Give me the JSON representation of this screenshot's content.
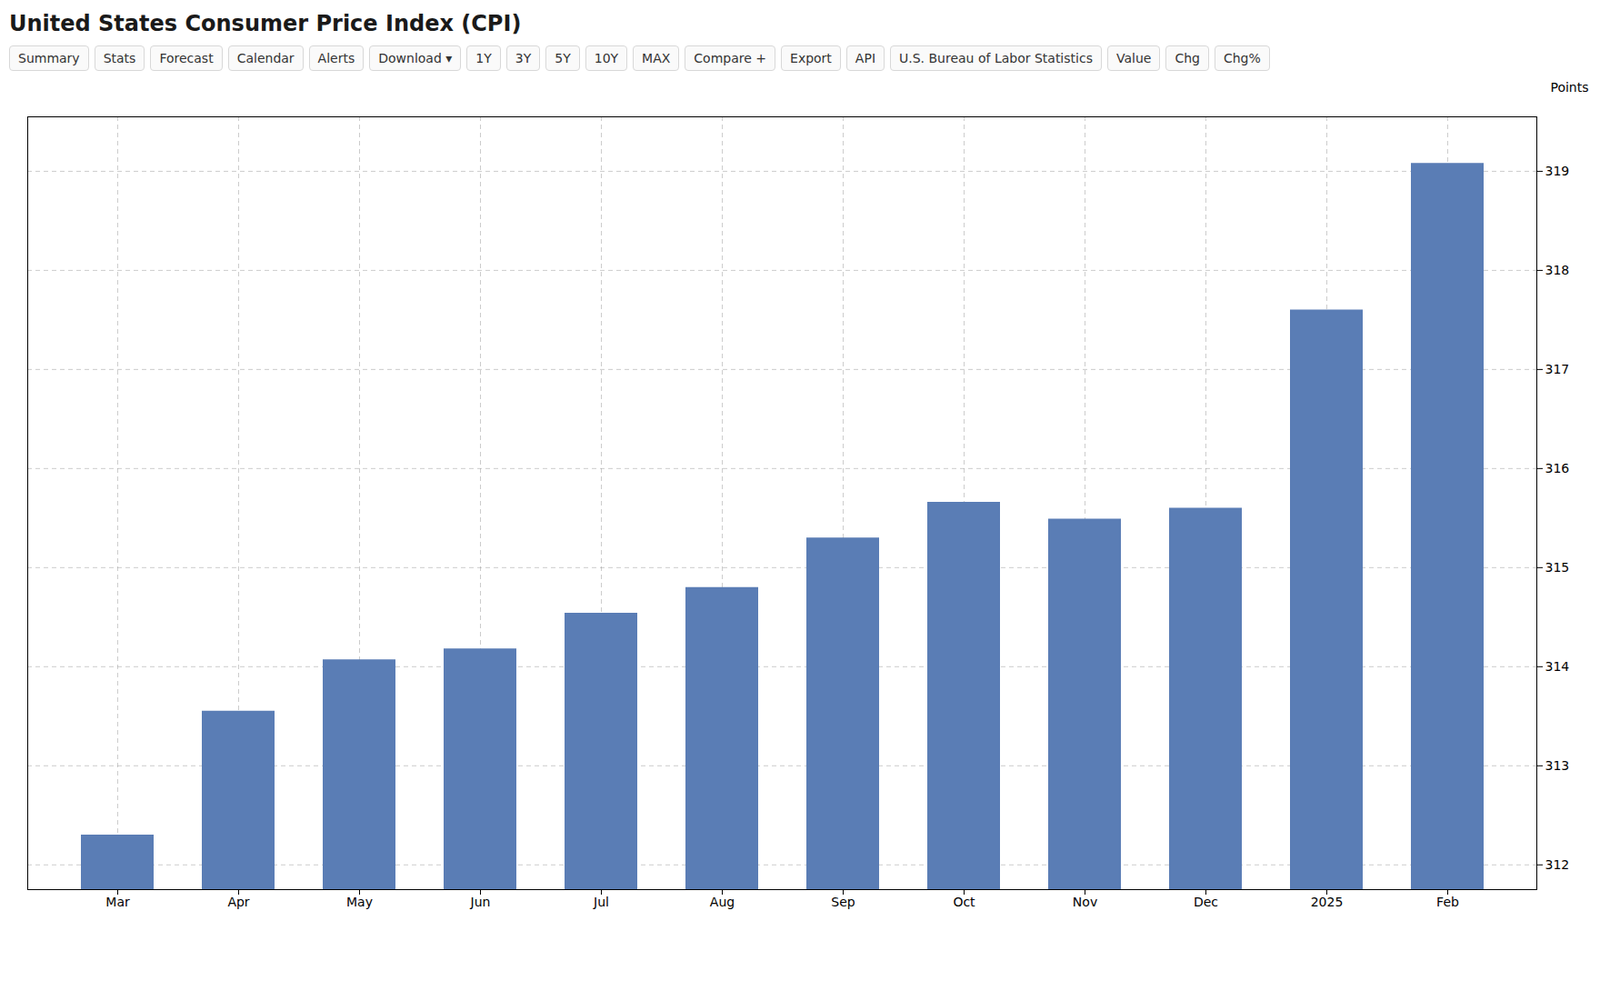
{
  "chart_data": {
    "type": "bar",
    "title": "United States Consumer Price Index (CPI)",
    "categories": [
      "Mar",
      "Apr",
      "May",
      "Jun",
      "Jul",
      "Aug",
      "Sep",
      "Oct",
      "Nov",
      "Dec",
      "2025",
      "Feb"
    ],
    "values": [
      312.3,
      313.55,
      314.07,
      314.18,
      314.54,
      314.8,
      315.3,
      315.66,
      315.49,
      315.6,
      317.6,
      319.08
    ],
    "color": "#5a7db5",
    "ylim": [
      311.75,
      319.55
    ],
    "yticks": [
      312,
      313,
      314,
      315,
      316,
      317,
      318,
      319
    ],
    "ylabel": "Points",
    "grid": true,
    "annotations": [
      "Summary",
      "Stats",
      "Forecast",
      "Calendar",
      "Alerts",
      "Download ▾",
      "1Y",
      "3Y",
      "5Y",
      "10Y",
      "MAX",
      "Compare +",
      "Export",
      "API",
      "U.S. Bureau of Labor Statistics",
      "Value",
      "Chg",
      "Chg%"
    ]
  }
}
